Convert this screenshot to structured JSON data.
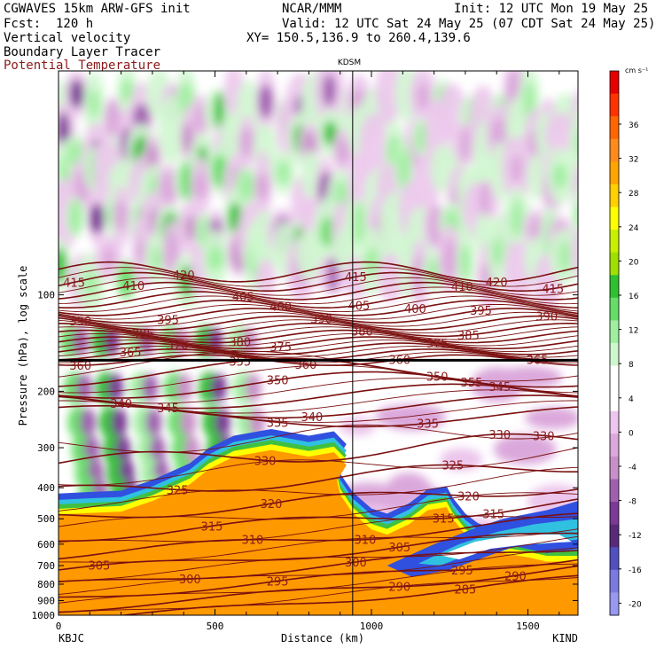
{
  "header": {
    "model": "CGWAVES 15km ARW-GFS init",
    "org": "NCAR/MMM",
    "init": "Init: 12 UTC Mon 19 May 25",
    "fcst": "Fcst:  120 h",
    "valid": "Valid: 12 UTC Sat 24 May 25 (07 CDT Sat 24 May 25)",
    "field1": "Vertical velocity",
    "field2": "Boundary Layer Tracer",
    "field3": "Potential Temperature",
    "xy": "XY= 150.5,136.9 to 260.4,139.6",
    "station_top": "KDSM"
  },
  "colors": {
    "theta_line": "#7a1010",
    "theta_text": "#8b1a1a",
    "station_line": "#000000",
    "tropopause_line": "#000000"
  },
  "chart_data": {
    "type": "heatmap",
    "xlabel": "Distance (km)",
    "ylabel": "Pressure (hPa), log scale",
    "xlim": [
      0,
      1660
    ],
    "ylim": [
      1000,
      20
    ],
    "y_scale": "log",
    "x_ticks": [
      0,
      500,
      1000,
      1500
    ],
    "y_ticks": [
      100,
      200,
      300,
      400,
      500,
      600,
      700,
      800,
      900,
      1000
    ],
    "x_end_labels": {
      "left": "KBJC",
      "right": "KIND"
    },
    "station_marker": {
      "name": "KDSM",
      "x": 940
    },
    "colorbar": {
      "unit": "cm s⁻¹",
      "ticks": [
        36,
        32,
        28,
        24,
        20,
        16,
        12,
        8,
        4,
        0,
        -4,
        -8,
        -12,
        -16,
        -20
      ],
      "colors": [
        "#e60000",
        "#ff3300",
        "#ff6600",
        "#ff8c1a",
        "#ffa500",
        "#ffd000",
        "#ffff00",
        "#c8f000",
        "#a0e000",
        "#30c030",
        "#66dd66",
        "#a0eea0",
        "#cff7cf",
        "#ffffff",
        "#ffffff",
        "#ecc6ec",
        "#dba8db",
        "#c890c8",
        "#a060b0",
        "#7a3a95",
        "#5a2a7a",
        "#5050c0",
        "#7a7ae0",
        "#9898f0"
      ]
    },
    "theta_contours": [
      {
        "value": 415,
        "label_x": [
          50,
          950,
          1580
        ]
      },
      {
        "value": 420,
        "label_x": [
          400,
          1400
        ]
      },
      {
        "value": 410,
        "label_x": [
          240,
          1290
        ]
      },
      {
        "value": 405,
        "label_x": [
          590,
          960
        ]
      },
      {
        "value": 400,
        "label_x": [
          710,
          1140
        ]
      },
      {
        "value": 395,
        "label_x": [
          350,
          1350
        ]
      },
      {
        "value": 390,
        "label_x": [
          70,
          840,
          1560
        ]
      },
      {
        "value": 385,
        "label_x": [
          270,
          1310
        ]
      },
      {
        "value": 380,
        "label_x": [
          580,
          970
        ]
      },
      {
        "value": 375,
        "label_x": [
          710,
          1210
        ]
      },
      {
        "value": 370,
        "label_x": [
          380
        ]
      },
      {
        "value": 360,
        "label_x": [
          70,
          790,
          1090
        ]
      },
      {
        "value": 365,
        "label_x": [
          230,
          1530
        ]
      },
      {
        "value": 355,
        "label_x": [
          580,
          1320
        ]
      },
      {
        "value": 350,
        "label_x": [
          700,
          1210
        ]
      },
      {
        "value": 345,
        "label_x": [
          350,
          1410
        ]
      },
      {
        "value": 340,
        "label_x": [
          200,
          810
        ]
      },
      {
        "value": 335,
        "label_x": [
          700,
          1180
        ]
      },
      {
        "value": 330,
        "label_x": [
          660,
          1410,
          1550
        ]
      },
      {
        "value": 325,
        "label_x": [
          380,
          1260
        ]
      },
      {
        "value": 320,
        "label_x": [
          680,
          1310
        ]
      },
      {
        "value": 315,
        "label_x": [
          490,
          1230,
          1390
        ]
      },
      {
        "value": 310,
        "label_x": [
          620,
          980
        ]
      },
      {
        "value": 305,
        "label_x": [
          130,
          1090
        ]
      },
      {
        "value": 300,
        "label_x": [
          420,
          950
        ]
      },
      {
        "value": 295,
        "label_x": [
          700,
          1290
        ]
      },
      {
        "value": 290,
        "label_x": [
          1090,
          1460
        ]
      },
      {
        "value": 285,
        "label_x": [
          1300
        ]
      }
    ],
    "tropopause_hPa": 160
  },
  "labels": {
    "tick_100": "100",
    "tick_200": "200",
    "tick_300": "300",
    "tick_400": "400",
    "tick_500": "500",
    "tick_600": "600",
    "tick_700": "700",
    "tick_800": "800",
    "tick_900": "900",
    "tick_1000": "1000",
    "xt_0": "0",
    "xt_500": "500",
    "xt_1000": "1000",
    "xt_1500": "1500"
  }
}
